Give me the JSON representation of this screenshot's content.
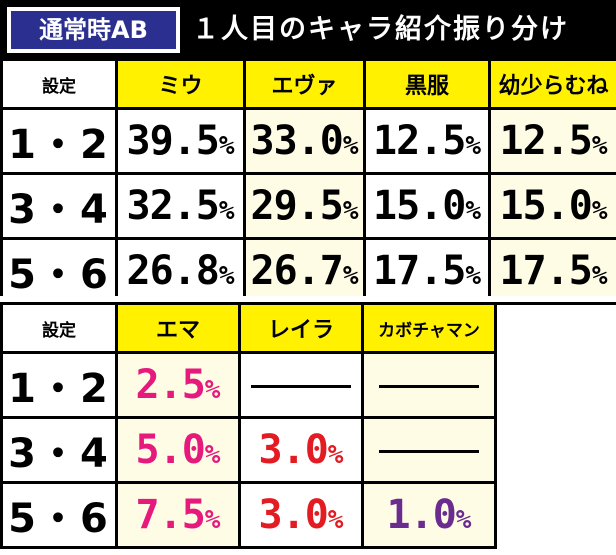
{
  "header": {
    "badge": "通常時AB",
    "title": "１人目のキャラ紹介振り分け"
  },
  "table1": {
    "setting_label": "設定",
    "columns": [
      "ミウ",
      "エヴァ",
      "黒服",
      "幼少らむね"
    ],
    "rows": [
      {
        "setting": "1・2",
        "values": [
          "39.5",
          "33.0",
          "12.5",
          "12.5"
        ]
      },
      {
        "setting": "3・4",
        "values": [
          "32.5",
          "29.5",
          "15.0",
          "15.0"
        ]
      },
      {
        "setting": "5・6",
        "values": [
          "26.8",
          "26.7",
          "17.5",
          "17.5"
        ]
      }
    ]
  },
  "table2": {
    "setting_label": "設定",
    "columns": [
      "エマ",
      "レイラ",
      "カボチャマン"
    ],
    "rows": [
      {
        "setting": "1・2",
        "values": [
          "2.5",
          "",
          ""
        ]
      },
      {
        "setting": "3・4",
        "values": [
          "5.0",
          "3.0",
          ""
        ]
      },
      {
        "setting": "5・6",
        "values": [
          "7.5",
          "3.0",
          "1.0"
        ]
      }
    ]
  },
  "percent_sign": "%",
  "colors": {
    "header_bg": "#000000",
    "badge_bg": "#2b2f8f",
    "column_header_bg": "#fff100",
    "cream_cell": "#fffce6",
    "emma_value": "#e6197d",
    "layla_value": "#e31b23",
    "kabocha_value": "#6b2c8f"
  }
}
